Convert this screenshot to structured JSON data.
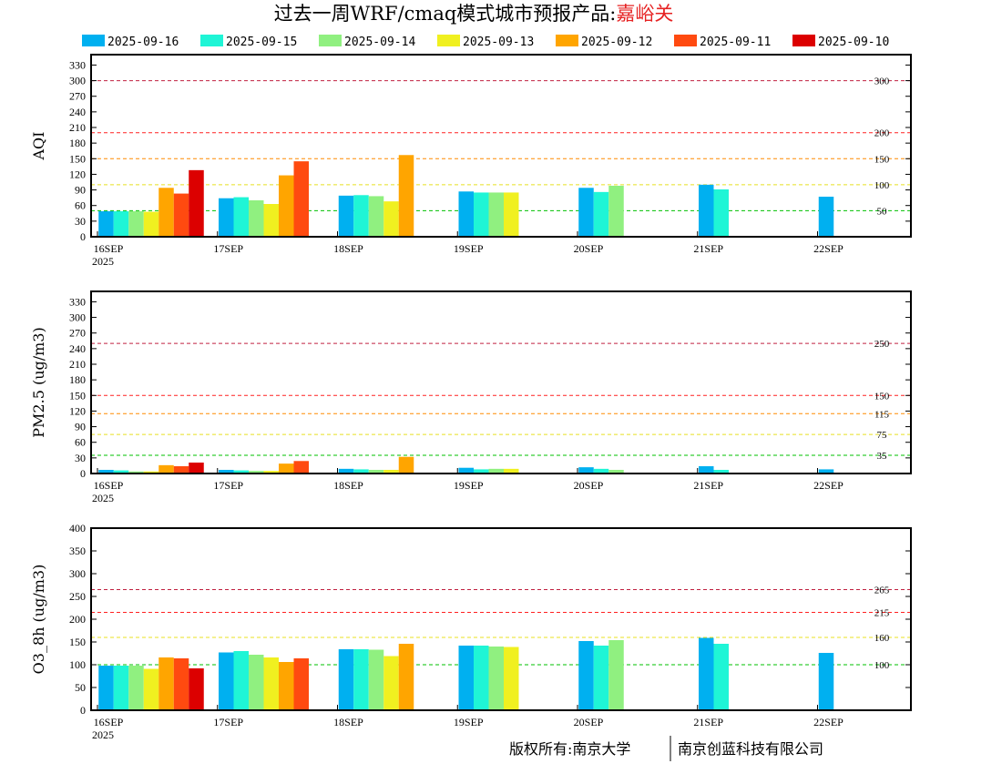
{
  "title": "过去一周WRF/cmaq模式城市预报产品:",
  "city": "嘉峪关",
  "footer": {
    "left": "版权所有:南京大学",
    "right": "南京创蓝科技有限公司"
  },
  "colors": {
    "2025-09-16": "#00b0f0",
    "2025-09-15": "#1ff5d6",
    "2025-09-14": "#90f080",
    "2025-09-13": "#f0f020",
    "2025-09-12": "#ffa500",
    "2025-09-11": "#ff4a10",
    "2025-09-10": "#dc0000"
  },
  "chart_data": [
    {
      "type": "bar",
      "ylabel": "AQI",
      "ylim": [
        0,
        350
      ],
      "yticks": [
        0,
        30,
        60,
        90,
        120,
        150,
        180,
        210,
        240,
        270,
        300,
        330
      ],
      "categories": [
        "16SEP",
        "17SEP",
        "18SEP",
        "19SEP",
        "20SEP",
        "21SEP",
        "22SEP"
      ],
      "year_label": "2025",
      "series": [
        {
          "name": "2025-09-16",
          "values": [
            49,
            74,
            79,
            87,
            94,
            100,
            77
          ]
        },
        {
          "name": "2025-09-15",
          "values": [
            49,
            76,
            80,
            85,
            86,
            91,
            null
          ]
        },
        {
          "name": "2025-09-14",
          "values": [
            49,
            70,
            78,
            85,
            98,
            null,
            null
          ]
        },
        {
          "name": "2025-09-13",
          "values": [
            48,
            63,
            68,
            85,
            null,
            null,
            null
          ]
        },
        {
          "name": "2025-09-12",
          "values": [
            94,
            118,
            157,
            null,
            null,
            null,
            null
          ]
        },
        {
          "name": "2025-09-11",
          "values": [
            83,
            145,
            null,
            null,
            null,
            null,
            null
          ]
        },
        {
          "name": "2025-09-10",
          "values": [
            128,
            null,
            null,
            null,
            null,
            null,
            null
          ]
        }
      ],
      "reference_lines": [
        {
          "value": 300,
          "label": "300",
          "color": "#c02040"
        },
        {
          "value": 200,
          "label": "200",
          "color": "#ff2020"
        },
        {
          "value": 150,
          "label": "150",
          "color": "#ff8c00"
        },
        {
          "value": 100,
          "label": "100",
          "color": "#e8e020"
        },
        {
          "value": 50,
          "label": "50",
          "color": "#00c000"
        }
      ]
    },
    {
      "type": "bar",
      "ylabel": "PM2.5 (ug/m3)",
      "ylim": [
        0,
        350
      ],
      "yticks": [
        0,
        30,
        60,
        90,
        120,
        150,
        180,
        210,
        240,
        270,
        300,
        330
      ],
      "categories": [
        "16SEP",
        "17SEP",
        "18SEP",
        "19SEP",
        "20SEP",
        "21SEP",
        "22SEP"
      ],
      "year_label": "2025",
      "series": [
        {
          "name": "2025-09-16",
          "values": [
            7,
            7,
            9,
            11,
            12,
            14,
            8
          ]
        },
        {
          "name": "2025-09-15",
          "values": [
            6,
            6,
            8,
            8,
            9,
            7,
            null
          ]
        },
        {
          "name": "2025-09-14",
          "values": [
            4,
            5,
            7,
            9,
            7,
            null,
            null
          ]
        },
        {
          "name": "2025-09-13",
          "values": [
            4,
            5,
            7,
            9,
            null,
            null,
            null
          ]
        },
        {
          "name": "2025-09-12",
          "values": [
            16,
            19,
            32,
            null,
            null,
            null,
            null
          ]
        },
        {
          "name": "2025-09-11",
          "values": [
            14,
            24,
            null,
            null,
            null,
            null,
            null
          ]
        },
        {
          "name": "2025-09-10",
          "values": [
            21,
            null,
            null,
            null,
            null,
            null,
            null
          ]
        }
      ],
      "reference_lines": [
        {
          "value": 250,
          "label": "250",
          "color": "#c02040"
        },
        {
          "value": 150,
          "label": "150",
          "color": "#ff2020"
        },
        {
          "value": 115,
          "label": "115",
          "color": "#ff8c00"
        },
        {
          "value": 75,
          "label": "75",
          "color": "#e8e020"
        },
        {
          "value": 35,
          "label": "35",
          "color": "#00c000"
        }
      ]
    },
    {
      "type": "bar",
      "ylabel": "O3_8h (ug/m3)",
      "ylim": [
        0,
        400
      ],
      "yticks": [
        0,
        50,
        100,
        150,
        200,
        250,
        300,
        350,
        400
      ],
      "categories": [
        "16SEP",
        "17SEP",
        "18SEP",
        "19SEP",
        "20SEP",
        "21SEP",
        "22SEP"
      ],
      "year_label": "2025",
      "series": [
        {
          "name": "2025-09-16",
          "values": [
            98,
            127,
            134,
            142,
            152,
            159,
            126
          ]
        },
        {
          "name": "2025-09-15",
          "values": [
            98,
            130,
            134,
            142,
            142,
            146,
            null
          ]
        },
        {
          "name": "2025-09-14",
          "values": [
            98,
            122,
            133,
            140,
            154,
            null,
            null
          ]
        },
        {
          "name": "2025-09-13",
          "values": [
            91,
            116,
            119,
            139,
            null,
            null,
            null
          ]
        },
        {
          "name": "2025-09-12",
          "values": [
            116,
            106,
            146,
            null,
            null,
            null,
            null
          ]
        },
        {
          "name": "2025-09-11",
          "values": [
            114,
            114,
            null,
            null,
            null,
            null,
            null
          ]
        },
        {
          "name": "2025-09-10",
          "values": [
            92,
            null,
            null,
            null,
            null,
            null,
            null
          ]
        }
      ],
      "reference_lines": [
        {
          "value": 265,
          "label": "265",
          "color": "#c02040"
        },
        {
          "value": 215,
          "label": "215",
          "color": "#ff2020"
        },
        {
          "value": 160,
          "label": "160",
          "color": "#e8e020"
        },
        {
          "value": 100,
          "label": "100",
          "color": "#00c000"
        }
      ]
    }
  ]
}
